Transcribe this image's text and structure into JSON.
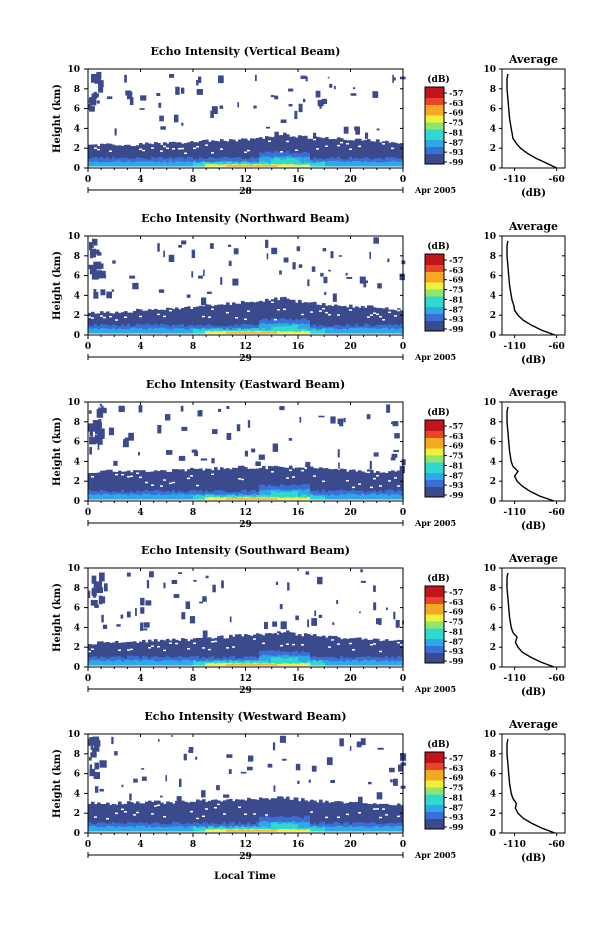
{
  "figure": {
    "xlabel": "Local Time",
    "date_suffix": "Apr 2005",
    "height_label": "Height (km)",
    "avg_title": "Average",
    "avg_xlabel": "(dB)",
    "cbar_unit": "(dB)",
    "cbar_ticks": [
      "-57",
      "-63",
      "-69",
      "-75",
      "-81",
      "-87",
      "-93",
      "-99"
    ],
    "colors": {
      "scale": [
        "#3b4a8c",
        "#3a6fd6",
        "#2ea9e8",
        "#31d8d0",
        "#8ee66a",
        "#f2ef3a",
        "#f7a823",
        "#e8452a",
        "#c0151b"
      ],
      "background": "#ffffff",
      "axis": "#000000"
    }
  },
  "chart_data": [
    {
      "type": "heatmap",
      "title": "Echo Intensity (Vertical Beam)",
      "xlabel": "Local Time",
      "ylabel": "Height (km)",
      "x_ticks": [
        "0",
        "4",
        "8",
        "12",
        "16",
        "20",
        "0"
      ],
      "y_ticks": [
        "0",
        "2",
        "4",
        "6",
        "8",
        "10"
      ],
      "xlim": [
        0,
        24
      ],
      "ylim": [
        0,
        10
      ],
      "day_label": "28",
      "colorbar": {
        "unit": "(dB)",
        "range": [
          -99,
          -57
        ]
      },
      "boundary_layer": {
        "time": [
          0,
          2,
          4,
          6,
          8,
          9,
          10,
          12,
          14,
          15,
          16,
          18,
          20,
          22,
          24
        ],
        "top_km": [
          2.3,
          2.35,
          2.4,
          2.5,
          2.6,
          2.7,
          2.75,
          2.9,
          3.1,
          3.4,
          3.2,
          3.0,
          2.9,
          2.8,
          2.6
        ]
      },
      "average": {
        "title": "Average",
        "xlabel": "(dB)",
        "x_ticks": [
          "-110",
          "-60"
        ],
        "y_ticks": [
          "0",
          "2",
          "4",
          "6",
          "8",
          "10"
        ],
        "xlim": [
          -125,
          -50
        ],
        "ylim": [
          0,
          10
        ],
        "height": [
          0,
          0.5,
          1,
          1.5,
          2,
          2.5,
          3,
          3.5,
          4,
          5,
          6,
          7,
          8,
          9,
          9.5
        ],
        "db": [
          -60,
          -72,
          -85,
          -95,
          -103,
          -108,
          -112,
          -113,
          -114,
          -116,
          -117,
          -118,
          -119,
          -119,
          -118
        ]
      }
    },
    {
      "type": "heatmap",
      "title": "Echo Intensity (Northward Beam)",
      "xlabel": "Local Time",
      "ylabel": "Height (km)",
      "x_ticks": [
        "0",
        "4",
        "8",
        "12",
        "16",
        "20",
        "0"
      ],
      "y_ticks": [
        "0",
        "2",
        "4",
        "6",
        "8",
        "10"
      ],
      "xlim": [
        0,
        24
      ],
      "ylim": [
        0,
        10
      ],
      "day_label": "29",
      "colorbar": {
        "unit": "(dB)",
        "range": [
          -99,
          -57
        ]
      },
      "boundary_layer": {
        "time": [
          0,
          2,
          4,
          6,
          8,
          9,
          10,
          12,
          14,
          15,
          16,
          18,
          20,
          22,
          24
        ],
        "top_km": [
          2.2,
          2.3,
          2.5,
          2.7,
          2.8,
          3.0,
          3.1,
          3.3,
          3.6,
          3.7,
          3.4,
          3.1,
          2.9,
          2.8,
          2.6
        ]
      },
      "average": {
        "title": "Average",
        "xlabel": "(dB)",
        "x_ticks": [
          "-110",
          "-60"
        ],
        "y_ticks": [
          "0",
          "2",
          "4",
          "6",
          "8",
          "10"
        ],
        "xlim": [
          -125,
          -50
        ],
        "ylim": [
          0,
          10
        ],
        "height": [
          0,
          0.5,
          1,
          1.5,
          2,
          2.5,
          3,
          3.5,
          4,
          5,
          6,
          7,
          8,
          9,
          9.5
        ],
        "db": [
          -62,
          -78,
          -90,
          -100,
          -106,
          -110,
          -111,
          -113,
          -114,
          -116,
          -117,
          -118,
          -119,
          -119,
          -118
        ]
      }
    },
    {
      "type": "heatmap",
      "title": "Echo Intensity (Eastward Beam)",
      "xlabel": "Local Time",
      "ylabel": "Height (km)",
      "x_ticks": [
        "0",
        "4",
        "8",
        "12",
        "16",
        "20",
        "0"
      ],
      "y_ticks": [
        "0",
        "2",
        "4",
        "6",
        "8",
        "10"
      ],
      "xlim": [
        0,
        24
      ],
      "ylim": [
        0,
        10
      ],
      "day_label": "29",
      "colorbar": {
        "unit": "(dB)",
        "range": [
          -99,
          -57
        ]
      },
      "boundary_layer": {
        "time": [
          0,
          2,
          4,
          6,
          8,
          9,
          10,
          12,
          14,
          15,
          16,
          18,
          20,
          22,
          24
        ],
        "top_km": [
          3.0,
          3.0,
          3.1,
          3.1,
          3.2,
          3.2,
          3.3,
          3.4,
          3.4,
          3.5,
          3.4,
          3.3,
          3.1,
          3.0,
          2.9
        ]
      },
      "average": {
        "title": "Average",
        "xlabel": "(dB)",
        "x_ticks": [
          "-110",
          "-60"
        ],
        "y_ticks": [
          "0",
          "2",
          "4",
          "6",
          "8",
          "10"
        ],
        "xlim": [
          -125,
          -50
        ],
        "ylim": [
          0,
          10
        ],
        "height": [
          0,
          0.5,
          1,
          1.5,
          2,
          2.5,
          3,
          3.5,
          4,
          5,
          6,
          7,
          8,
          9,
          9.5
        ],
        "db": [
          -63,
          -80,
          -92,
          -101,
          -107,
          -110,
          -106,
          -112,
          -114,
          -116,
          -117,
          -118,
          -119,
          -119,
          -118
        ]
      }
    },
    {
      "type": "heatmap",
      "title": "Echo Intensity (Southward Beam)",
      "xlabel": "Local Time",
      "ylabel": "Height (km)",
      "x_ticks": [
        "0",
        "4",
        "8",
        "12",
        "16",
        "20",
        "0"
      ],
      "y_ticks": [
        "0",
        "2",
        "4",
        "6",
        "8",
        "10"
      ],
      "xlim": [
        0,
        24
      ],
      "ylim": [
        0,
        10
      ],
      "day_label": "29",
      "colorbar": {
        "unit": "(dB)",
        "range": [
          -99,
          -57
        ]
      },
      "boundary_layer": {
        "time": [
          0,
          2,
          4,
          6,
          8,
          9,
          10,
          12,
          14,
          15,
          16,
          18,
          20,
          22,
          24
        ],
        "top_km": [
          2.4,
          2.5,
          2.6,
          2.7,
          2.8,
          2.9,
          3.0,
          3.2,
          3.4,
          3.6,
          3.3,
          3.1,
          2.9,
          2.7,
          2.6
        ]
      },
      "average": {
        "title": "Average",
        "xlabel": "(dB)",
        "x_ticks": [
          "-110",
          "-60"
        ],
        "y_ticks": [
          "0",
          "2",
          "4",
          "6",
          "8",
          "10"
        ],
        "xlim": [
          -125,
          -50
        ],
        "ylim": [
          0,
          10
        ],
        "height": [
          0,
          0.5,
          1,
          1.5,
          2,
          2.5,
          3,
          3.5,
          4,
          5,
          6,
          7,
          8,
          9,
          9.5
        ],
        "db": [
          -63,
          -79,
          -91,
          -101,
          -106,
          -109,
          -107,
          -112,
          -114,
          -116,
          -117,
          -118,
          -119,
          -119,
          -118
        ]
      }
    },
    {
      "type": "heatmap",
      "title": "Echo Intensity (Westward Beam)",
      "xlabel": "Local Time",
      "ylabel": "Height (km)",
      "x_ticks": [
        "0",
        "4",
        "8",
        "12",
        "16",
        "20",
        "0"
      ],
      "y_ticks": [
        "0",
        "2",
        "4",
        "6",
        "8",
        "10"
      ],
      "xlim": [
        0,
        24
      ],
      "ylim": [
        0,
        10
      ],
      "day_label": "29",
      "colorbar": {
        "unit": "(dB)",
        "range": [
          -99,
          -57
        ]
      },
      "boundary_layer": {
        "time": [
          0,
          2,
          4,
          6,
          8,
          9,
          10,
          12,
          14,
          15,
          16,
          18,
          20,
          22,
          24
        ],
        "top_km": [
          3.0,
          3.0,
          3.1,
          3.1,
          3.2,
          3.3,
          3.3,
          3.4,
          3.5,
          3.6,
          3.4,
          3.2,
          3.1,
          3.0,
          2.9
        ]
      },
      "average": {
        "title": "Average",
        "xlabel": "(dB)",
        "x_ticks": [
          "-110",
          "-60"
        ],
        "y_ticks": [
          "0",
          "2",
          "4",
          "6",
          "8",
          "10"
        ],
        "xlim": [
          -125,
          -50
        ],
        "ylim": [
          0,
          10
        ],
        "height": [
          0,
          0.5,
          1,
          1.5,
          2,
          2.5,
          3,
          3.5,
          4,
          5,
          6,
          7,
          8,
          9,
          9.5
        ],
        "db": [
          -62,
          -78,
          -90,
          -100,
          -106,
          -109,
          -108,
          -112,
          -114,
          -116,
          -117,
          -118,
          -119,
          -119,
          -118
        ]
      }
    }
  ]
}
